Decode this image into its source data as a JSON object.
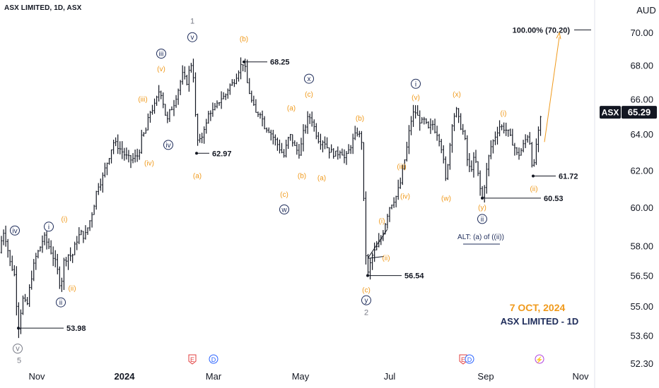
{
  "header": {
    "symbol_title": "ASX LIMITED, 1D, ASX",
    "currency": "AUD"
  },
  "price_badge": {
    "symbol": "ASX",
    "price": "65.29"
  },
  "footer": {
    "date": "7 OCT, 2024",
    "name": "ASX LIMITED - 1D"
  },
  "colors": {
    "orange": "#f09a1c",
    "navy": "#1e2c5a",
    "gray": "#787b86",
    "candle": "#131722",
    "e_event": "#e23c3c",
    "d_event": "#2962ff",
    "s_event": "#b042e0"
  },
  "chart_data": {
    "type": "ohlc",
    "title": "ASX LIMITED, 1D, ASX",
    "ylabel": "AUD",
    "ylim": [
      52.3,
      71.5
    ],
    "y_scale": "log",
    "y_ticks": [
      "70.00",
      "68.00",
      "66.00",
      "64.00",
      "62.00",
      "60.00",
      "58.00",
      "56.50",
      "55.00",
      "53.60",
      "52.30"
    ],
    "x_ticks": [
      "Nov",
      "2024",
      "Mar",
      "May",
      "Jul",
      "Sep",
      "Nov"
    ],
    "price_path": [
      [
        0,
        57.7
      ],
      [
        4,
        58.9
      ],
      [
        9,
        58.3
      ],
      [
        14,
        57.2
      ],
      [
        20,
        56.7
      ],
      [
        26,
        53.98
      ],
      [
        32,
        55.4
      ],
      [
        38,
        55.0
      ],
      [
        44,
        56.4
      ],
      [
        50,
        57.4
      ],
      [
        56,
        57.9
      ],
      [
        62,
        58.5
      ],
      [
        68,
        58.1
      ],
      [
        74,
        57.6
      ],
      [
        80,
        57.0
      ],
      [
        86,
        55.9
      ],
      [
        90,
        57.2
      ],
      [
        96,
        57.6
      ],
      [
        102,
        57.5
      ],
      [
        108,
        58.3
      ],
      [
        114,
        58.7
      ],
      [
        120,
        58.5
      ],
      [
        126,
        59.2
      ],
      [
        132,
        60.0
      ],
      [
        138,
        61.2
      ],
      [
        144,
        61.5
      ],
      [
        150,
        62.3
      ],
      [
        156,
        63.0
      ],
      [
        160,
        63.6
      ],
      [
        166,
        63.4
      ],
      [
        172,
        63.1
      ],
      [
        178,
        62.8
      ],
      [
        184,
        62.6
      ],
      [
        190,
        62.7
      ],
      [
        196,
        62.9
      ],
      [
        200,
        63.8
      ],
      [
        206,
        64.2
      ],
      [
        212,
        65.3
      ],
      [
        218,
        65.6
      ],
      [
        222,
        66.1
      ],
      [
        226,
        66.7
      ],
      [
        230,
        66.0
      ],
      [
        236,
        64.7
      ],
      [
        240,
        65.3
      ],
      [
        246,
        65.8
      ],
      [
        252,
        66.6
      ],
      [
        258,
        67.5
      ],
      [
        264,
        67.0
      ],
      [
        270,
        68.2
      ],
      [
        274,
        67.3
      ],
      [
        278,
        63.7
      ],
      [
        284,
        63.6
      ],
      [
        288,
        64.4
      ],
      [
        292,
        64.6
      ],
      [
        296,
        65.4
      ],
      [
        300,
        65.3
      ],
      [
        306,
        65.6
      ],
      [
        312,
        66.1
      ],
      [
        318,
        66.2
      ],
      [
        324,
        66.8
      ],
      [
        330,
        67.0
      ],
      [
        336,
        67.6
      ],
      [
        340,
        68.0
      ],
      [
        345,
        68.25
      ],
      [
        350,
        66.9
      ],
      [
        356,
        65.9
      ],
      [
        362,
        65.2
      ],
      [
        368,
        65.3
      ],
      [
        374,
        64.5
      ],
      [
        380,
        64.3
      ],
      [
        386,
        63.9
      ],
      [
        392,
        63.5
      ],
      [
        396,
        63.2
      ],
      [
        402,
        62.8
      ],
      [
        406,
        63.6
      ],
      [
        410,
        64.0
      ],
      [
        414,
        63.6
      ],
      [
        418,
        63.2
      ],
      [
        424,
        63.0
      ],
      [
        430,
        64.3
      ],
      [
        436,
        65.0
      ],
      [
        440,
        65.0
      ],
      [
        446,
        64.2
      ],
      [
        452,
        63.6
      ],
      [
        458,
        63.7
      ],
      [
        464,
        63.2
      ],
      [
        470,
        63.0
      ],
      [
        476,
        62.9
      ],
      [
        482,
        63.2
      ],
      [
        488,
        62.6
      ],
      [
        494,
        63.2
      ],
      [
        500,
        63.8
      ],
      [
        506,
        64.2
      ],
      [
        512,
        63.6
      ],
      [
        516,
        58.2
      ],
      [
        520,
        56.54
      ],
      [
        526,
        57.5
      ],
      [
        532,
        57.9
      ],
      [
        538,
        58.3
      ],
      [
        544,
        59.1
      ],
      [
        550,
        60.0
      ],
      [
        556,
        60.4
      ],
      [
        560,
        60.6
      ],
      [
        566,
        61.3
      ],
      [
        570,
        62.1
      ],
      [
        576,
        63.4
      ],
      [
        580,
        64.6
      ],
      [
        584,
        65.2
      ],
      [
        588,
        65.3
      ],
      [
        592,
        64.9
      ],
      [
        596,
        64.7
      ],
      [
        600,
        64.8
      ],
      [
        606,
        64.3
      ],
      [
        612,
        64.6
      ],
      [
        616,
        64.2
      ],
      [
        620,
        64.0
      ],
      [
        626,
        63.0
      ],
      [
        630,
        61.4
      ],
      [
        636,
        63.3
      ],
      [
        640,
        64.9
      ],
      [
        646,
        65.4
      ],
      [
        650,
        64.6
      ],
      [
        654,
        64.3
      ],
      [
        658,
        63.6
      ],
      [
        662,
        62.2
      ],
      [
        666,
        62.1
      ],
      [
        670,
        62.6
      ],
      [
        674,
        62.4
      ],
      [
        678,
        61.2
      ],
      [
        682,
        60.53
      ],
      [
        686,
        61.4
      ],
      [
        690,
        62.5
      ],
      [
        694,
        63.3
      ],
      [
        700,
        63.9
      ],
      [
        706,
        64.5
      ],
      [
        712,
        64.4
      ],
      [
        718,
        64.2
      ],
      [
        722,
        63.8
      ],
      [
        726,
        63.5
      ],
      [
        732,
        62.8
      ],
      [
        738,
        63.2
      ],
      [
        742,
        63.6
      ],
      [
        746,
        64.0
      ],
      [
        750,
        63.5
      ],
      [
        754,
        61.72
      ],
      [
        758,
        63.4
      ],
      [
        762,
        64.2
      ],
      [
        766,
        65.29
      ]
    ],
    "levels": [
      {
        "label": "53.98",
        "price": 53.98
      },
      {
        "label": "62.97",
        "price": 62.97
      },
      {
        "label": "68.25",
        "price": 68.25
      },
      {
        "label": "56.54",
        "price": 56.54
      },
      {
        "label": "60.53",
        "price": 60.53
      },
      {
        "label": "61.72",
        "price": 61.72
      },
      {
        "label": "100.00% (70.20)",
        "price": 70.2
      }
    ],
    "wave_labels": [
      {
        "text": "1",
        "style": "g",
        "x": 272,
        "p": 70.6,
        "circle": false
      },
      {
        "text": "v",
        "style": "n",
        "x": 272,
        "p": 69.6,
        "circle": true
      },
      {
        "text": "iii",
        "style": "n",
        "x": 228,
        "p": 68.6,
        "circle": true
      },
      {
        "text": "(v)",
        "style": "o",
        "x": 228,
        "p": 67.7,
        "circle": false
      },
      {
        "text": "(iii)",
        "style": "o",
        "x": 202,
        "p": 65.9,
        "circle": false
      },
      {
        "text": "iv",
        "style": "n",
        "x": 238,
        "p": 63.3,
        "circle": true
      },
      {
        "text": "(iv)",
        "style": "o",
        "x": 211,
        "p": 62.3,
        "circle": false
      },
      {
        "text": "(a)",
        "style": "o",
        "x": 279,
        "p": 61.6,
        "circle": false
      },
      {
        "text": "(b)",
        "style": "o",
        "x": 345,
        "p": 69.5,
        "circle": false
      },
      {
        "text": "x",
        "style": "n",
        "x": 437,
        "p": 67.1,
        "circle": true
      },
      {
        "text": "(c)",
        "style": "o",
        "x": 437,
        "p": 66.2,
        "circle": false
      },
      {
        "text": "(a)",
        "style": "o",
        "x": 412,
        "p": 65.4,
        "circle": false
      },
      {
        "text": "(b)",
        "style": "o",
        "x": 509,
        "p": 64.8,
        "circle": false
      },
      {
        "text": "(b)",
        "style": "o",
        "x": 427,
        "p": 61.6,
        "circle": false
      },
      {
        "text": "(a)",
        "style": "o",
        "x": 455,
        "p": 61.5,
        "circle": false
      },
      {
        "text": "(c)",
        "style": "o",
        "x": 402,
        "p": 60.6,
        "circle": false
      },
      {
        "text": "w",
        "style": "n",
        "x": 402,
        "p": 59.8,
        "circle": true
      },
      {
        "text": "iv",
        "style": "n",
        "x": 21,
        "p": 58.7,
        "circle": true
      },
      {
        "text": "i",
        "style": "n",
        "x": 69,
        "p": 58.9,
        "circle": true
      },
      {
        "text": "(i)",
        "style": "o",
        "x": 91,
        "p": 59.3,
        "circle": false
      },
      {
        "text": "(ii)",
        "style": "o",
        "x": 102,
        "p": 55.8,
        "circle": false
      },
      {
        "text": "ii",
        "style": "n",
        "x": 86,
        "p": 55.1,
        "circle": true
      },
      {
        "text": "v",
        "style": "g",
        "x": 25,
        "p": 52.9,
        "circle": true
      },
      {
        "text": "5",
        "style": "g",
        "x": 27,
        "p": 52.35,
        "circle": false
      },
      {
        "text": "i",
        "style": "n",
        "x": 588,
        "p": 66.8,
        "circle": true
      },
      {
        "text": "(v)",
        "style": "o",
        "x": 588,
        "p": 66.0,
        "circle": false
      },
      {
        "text": "(x)",
        "style": "o",
        "x": 646,
        "p": 66.2,
        "circle": false
      },
      {
        "text": "(i)",
        "style": "o",
        "x": 712,
        "p": 65.1,
        "circle": false
      },
      {
        "text": "(iii)",
        "style": "o",
        "x": 568,
        "p": 62.1,
        "circle": false
      },
      {
        "text": "(iv)",
        "style": "o",
        "x": 573,
        "p": 60.5,
        "circle": false
      },
      {
        "text": "(w)",
        "style": "o",
        "x": 631,
        "p": 60.4,
        "circle": false
      },
      {
        "text": "(ii)",
        "style": "o",
        "x": 755,
        "p": 60.9,
        "circle": false
      },
      {
        "text": "(y)",
        "style": "o",
        "x": 682,
        "p": 59.9,
        "circle": false
      },
      {
        "text": "ii",
        "style": "n",
        "x": 682,
        "p": 59.3,
        "circle": true
      },
      {
        "text": "(i)",
        "style": "o",
        "x": 540,
        "p": 59.2,
        "circle": false
      },
      {
        "text": "(ii)",
        "style": "o",
        "x": 546,
        "p": 57.3,
        "circle": false
      },
      {
        "text": "(c)",
        "style": "o",
        "x": 518,
        "p": 55.7,
        "circle": false
      },
      {
        "text": "y",
        "style": "n",
        "x": 518,
        "p": 55.2,
        "circle": true
      },
      {
        "text": "2",
        "style": "g",
        "x": 518,
        "p": 54.6,
        "circle": false
      }
    ],
    "alt_label": "ALT: (a) of ((ii))",
    "events": [
      "E",
      "D",
      "E",
      "D",
      "⚡"
    ]
  }
}
